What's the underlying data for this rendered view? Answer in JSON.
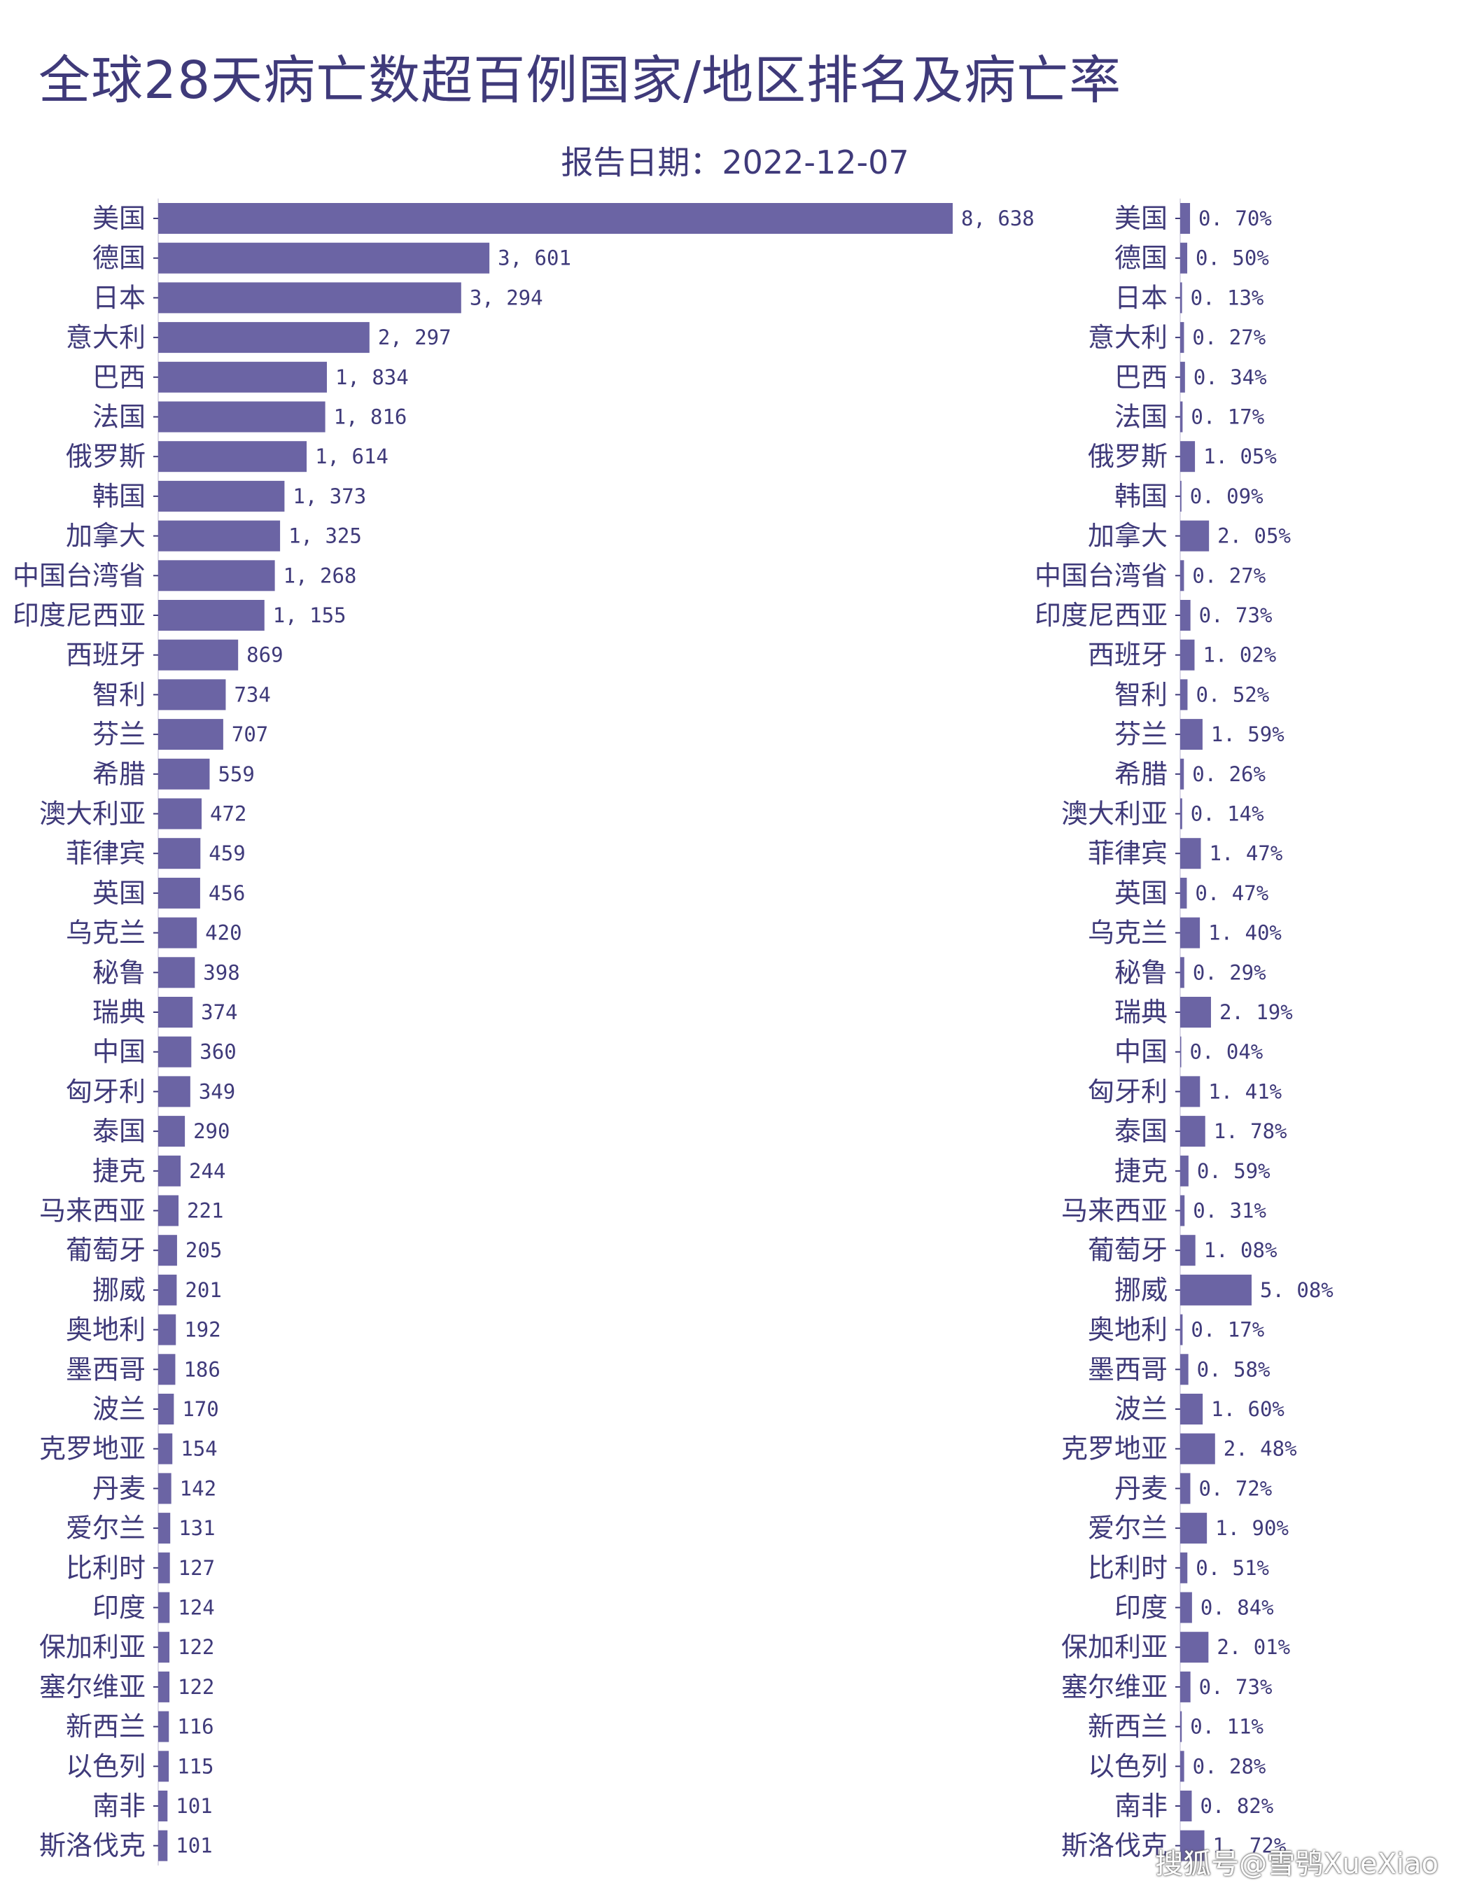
{
  "title": "全球28天病亡数超百例国家/地区排名及病亡率",
  "subtitle": "报告日期：2022-12-07",
  "watermark": "搜狐号@雪鸮XueXiao",
  "colors": {
    "bar": "#6b64a4",
    "text": "#3f3a7a"
  },
  "chart_data": [
    {
      "type": "bar",
      "orientation": "horizontal",
      "categories": [
        "美国",
        "德国",
        "日本",
        "意大利",
        "巴西",
        "法国",
        "俄罗斯",
        "韩国",
        "加拿大",
        "中国台湾省",
        "印度尼西亚",
        "西班牙",
        "智利",
        "芬兰",
        "希腊",
        "澳大利亚",
        "菲律宾",
        "英国",
        "乌克兰",
        "秘鲁",
        "瑞典",
        "中国",
        "匈牙利",
        "泰国",
        "捷克",
        "马来西亚",
        "葡萄牙",
        "挪威",
        "奥地利",
        "墨西哥",
        "波兰",
        "克罗地亚",
        "丹麦",
        "爱尔兰",
        "比利时",
        "印度",
        "保加利亚",
        "塞尔维亚",
        "新西兰",
        "以色列",
        "南非",
        "斯洛伐克"
      ],
      "values": [
        8638,
        3601,
        3294,
        2297,
        1834,
        1816,
        1614,
        1373,
        1325,
        1268,
        1155,
        869,
        734,
        707,
        559,
        472,
        459,
        456,
        420,
        398,
        374,
        360,
        349,
        290,
        244,
        221,
        205,
        201,
        192,
        186,
        170,
        154,
        142,
        131,
        127,
        124,
        122,
        122,
        116,
        115,
        101,
        101
      ],
      "labels": [
        "8, 638",
        "3, 601",
        "3, 294",
        "2, 297",
        "1, 834",
        "1, 816",
        "1, 614",
        "1, 373",
        "1, 325",
        "1, 268",
        "1, 155",
        "869",
        "734",
        "707",
        "559",
        "472",
        "459",
        "456",
        "420",
        "398",
        "374",
        "360",
        "349",
        "290",
        "244",
        "221",
        "205",
        "201",
        "192",
        "186",
        "170",
        "154",
        "142",
        "131",
        "127",
        "124",
        "122",
        "122",
        "116",
        "115",
        "101",
        "101"
      ]
    },
    {
      "type": "bar",
      "orientation": "horizontal",
      "categories": [
        "美国",
        "德国",
        "日本",
        "意大利",
        "巴西",
        "法国",
        "俄罗斯",
        "韩国",
        "加拿大",
        "中国台湾省",
        "印度尼西亚",
        "西班牙",
        "智利",
        "芬兰",
        "希腊",
        "澳大利亚",
        "菲律宾",
        "英国",
        "乌克兰",
        "秘鲁",
        "瑞典",
        "中国",
        "匈牙利",
        "泰国",
        "捷克",
        "马来西亚",
        "葡萄牙",
        "挪威",
        "奥地利",
        "墨西哥",
        "波兰",
        "克罗地亚",
        "丹麦",
        "爱尔兰",
        "比利时",
        "印度",
        "保加利亚",
        "塞尔维亚",
        "新西兰",
        "以色列",
        "南非",
        "斯洛伐克"
      ],
      "values": [
        0.7,
        0.5,
        0.13,
        0.27,
        0.34,
        0.17,
        1.05,
        0.09,
        2.05,
        0.27,
        0.73,
        1.02,
        0.52,
        1.59,
        0.26,
        0.14,
        1.47,
        0.47,
        1.4,
        0.29,
        2.19,
        0.04,
        1.41,
        1.78,
        0.59,
        0.31,
        1.08,
        5.08,
        0.17,
        0.58,
        1.6,
        2.48,
        0.72,
        1.9,
        0.51,
        0.84,
        2.01,
        0.73,
        0.11,
        0.28,
        0.82,
        1.72
      ],
      "labels": [
        "0. 70%",
        "0. 50%",
        "0. 13%",
        "0. 27%",
        "0. 34%",
        "0. 17%",
        "1. 05%",
        "0. 09%",
        "2. 05%",
        "0. 27%",
        "0. 73%",
        "1. 02%",
        "0. 52%",
        "1. 59%",
        "0. 26%",
        "0. 14%",
        "1. 47%",
        "0. 47%",
        "1. 40%",
        "0. 29%",
        "2. 19%",
        "0. 04%",
        "1. 41%",
        "1. 78%",
        "0. 59%",
        "0. 31%",
        "1. 08%",
        "5. 08%",
        "0. 17%",
        "0. 58%",
        "1. 60%",
        "2. 48%",
        "0. 72%",
        "1. 90%",
        "0. 51%",
        "0. 84%",
        "2. 01%",
        "0. 73%",
        "0. 11%",
        "0. 28%",
        "0. 82%",
        "1. 72%"
      ],
      "unit": "%"
    }
  ]
}
